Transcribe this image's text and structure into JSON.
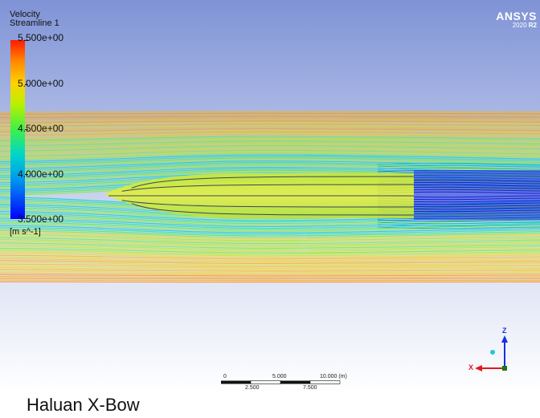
{
  "legend": {
    "variable": "Velocity",
    "name": "Streamline 1",
    "values": [
      "5.500e+00",
      "5.000e+00",
      "4.500e+00",
      "4.000e+00",
      "3.500e+00"
    ],
    "units": "[m s^-1]",
    "range": [
      3.5,
      5.5
    ]
  },
  "brand": {
    "name": "ANSYS",
    "version_prefix": "2020",
    "version_bold": "R2"
  },
  "scale_bar": {
    "top_labels": [
      "0",
      "5.000",
      "10.000  (m)"
    ],
    "bottom_labels": [
      "2.500",
      "7.500"
    ]
  },
  "axes": {
    "z": "Z",
    "x": "X"
  },
  "caption": "Haluan X-Bow",
  "colors": {
    "background_top": "#7f93d6",
    "background_bottom": "#ffffff",
    "max": "#ff1a00",
    "min": "#0000ff"
  }
}
